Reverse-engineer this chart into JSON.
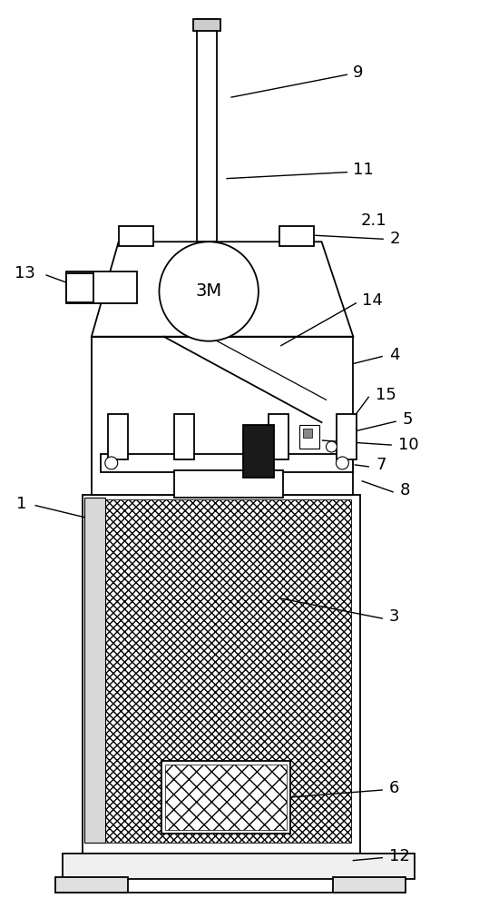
{
  "figure_width": 5.28,
  "figure_height": 10.0,
  "dpi": 100,
  "bg_color": "#ffffff",
  "line_color": "#000000",
  "label_fontsize": 13
}
